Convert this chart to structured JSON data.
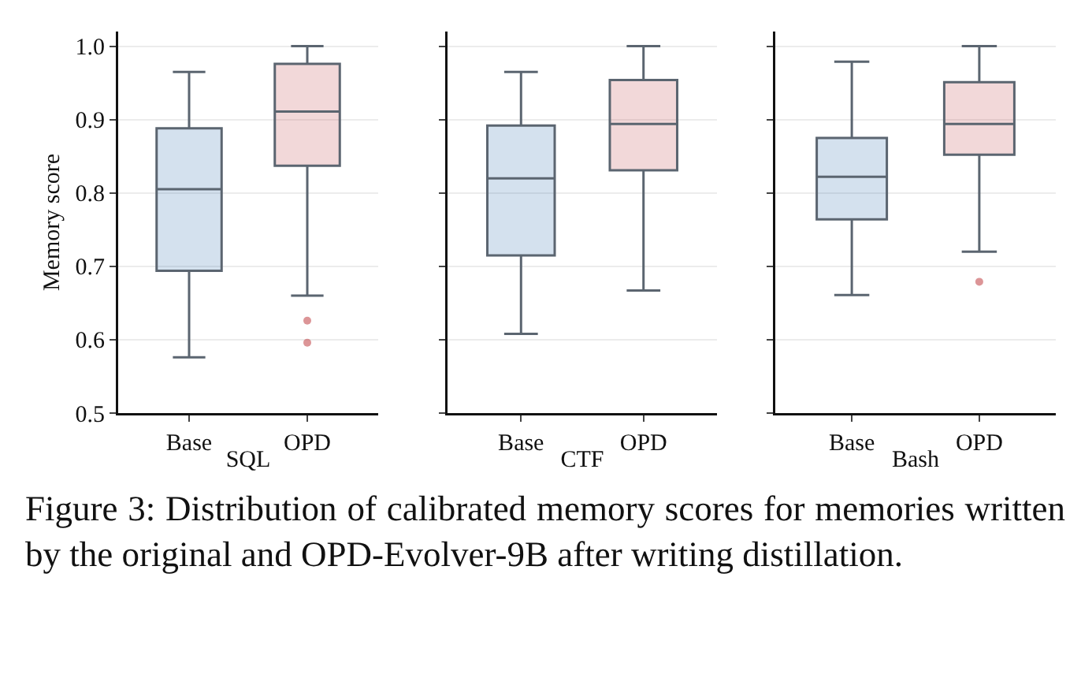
{
  "chart_data": [
    {
      "type": "box",
      "ylabel": "Memory score",
      "xlabel": "SQL",
      "categories": [
        "Base",
        "OPD"
      ],
      "colors": [
        "#3a75b0",
        "#c44e52"
      ],
      "ylim": [
        0.5,
        1.02
      ],
      "yticks": [
        {
          "value": 0.5,
          "label": "0.5"
        },
        {
          "value": 0.6,
          "label": "0.6"
        },
        {
          "value": 0.7,
          "label": "0.7"
        },
        {
          "value": 0.8,
          "label": "0.8"
        },
        {
          "value": 0.9,
          "label": "0.9"
        },
        {
          "value": 1.0,
          "label": "1.0"
        }
      ],
      "grid": "y",
      "boxes": [
        {
          "low": 0.576,
          "q1": 0.694,
          "median": 0.805,
          "q3": 0.888,
          "high": 0.965
        },
        {
          "low": 0.66,
          "q1": 0.837,
          "median": 0.911,
          "q3": 0.976,
          "high": 1.0,
          "outliers": [
            0.626,
            0.596
          ]
        }
      ],
      "annotations": [
        "Figure 3: Distribution of calibrated memory scores for memories written by the original and OPD-Evolver-9B after writing distillation."
      ]
    },
    {
      "type": "box",
      "xlabel": "CTF",
      "categories": [
        "Base",
        "OPD"
      ],
      "colors": [
        "#3a75b0",
        "#c44e52"
      ],
      "ylim": [
        0.5,
        1.02
      ],
      "yticks": [
        0.5,
        0.6,
        0.7,
        0.8,
        0.9,
        1.0
      ],
      "grid": "y",
      "tick_labels": "x",
      "boxes": [
        {
          "low": 0.608,
          "q1": 0.715,
          "median": 0.82,
          "q3": 0.892,
          "high": 0.965
        },
        {
          "low": 0.667,
          "q1": 0.831,
          "median": 0.894,
          "q3": 0.954,
          "high": 1.0
        }
      ]
    },
    {
      "type": "box",
      "xlabel": "Bash",
      "categories": [
        "Base",
        "OPD"
      ],
      "colors": [
        "#3a75b0",
        "#c44e52"
      ],
      "ylim": [
        0.5,
        1.02
      ],
      "yticks": [
        0.5,
        0.6,
        0.7,
        0.8,
        0.9,
        1.0
      ],
      "grid": "y",
      "tick_labels": "x",
      "boxes": [
        {
          "low": 0.661,
          "q1": 0.764,
          "median": 0.822,
          "q3": 0.875,
          "high": 0.979
        },
        {
          "low": 0.72,
          "q1": 0.852,
          "median": 0.894,
          "q3": 0.951,
          "high": 1.0,
          "outliers": [
            0.679
          ]
        }
      ]
    }
  ]
}
